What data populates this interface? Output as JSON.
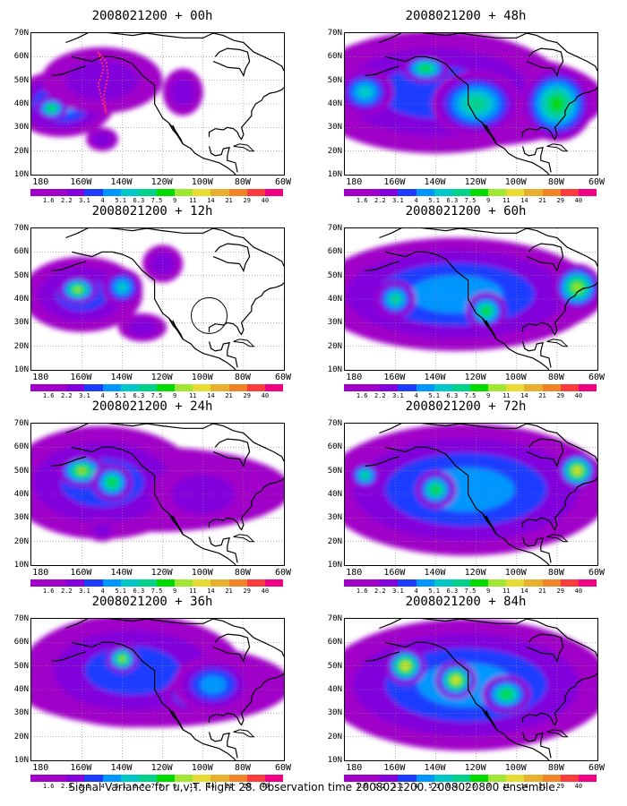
{
  "panels": [
    {
      "title": "2008021200 + 00h",
      "level": 0
    },
    {
      "title": "2008021200 + 48h",
      "level": 3
    },
    {
      "title": "2008021200 + 12h",
      "level": 1
    },
    {
      "title": "2008021200 + 60h",
      "level": 3
    },
    {
      "title": "2008021200 + 24h",
      "level": 2
    },
    {
      "title": "2008021200 + 72h",
      "level": 4
    },
    {
      "title": "2008021200 + 36h",
      "level": 2
    },
    {
      "title": "2008021200 + 84h",
      "level": 4
    }
  ],
  "y_axis": [
    "70N",
    "60N",
    "50N",
    "40N",
    "30N",
    "20N",
    "10N"
  ],
  "x_axis": [
    "180",
    "160W",
    "140W",
    "120W",
    "100W",
    "80W",
    "60W"
  ],
  "colorbar": {
    "labels": [
      "1.6",
      "2.2",
      "3.1",
      "4",
      "5.1",
      "6.3",
      "7.5",
      "9",
      "11",
      "14",
      "21",
      "29",
      "40"
    ],
    "colors": [
      "#a000c8",
      "#8200dc",
      "#1e3cff",
      "#0096ff",
      "#00c8c8",
      "#00d28c",
      "#00dc00",
      "#a0e632",
      "#e6dc32",
      "#e6af2d",
      "#f08228",
      "#fa3c3c",
      "#f00082"
    ]
  },
  "caption": "Signal Variance for u,v,T. Flight 28. Observation time 2008021200. 2008020800 ensemble."
}
